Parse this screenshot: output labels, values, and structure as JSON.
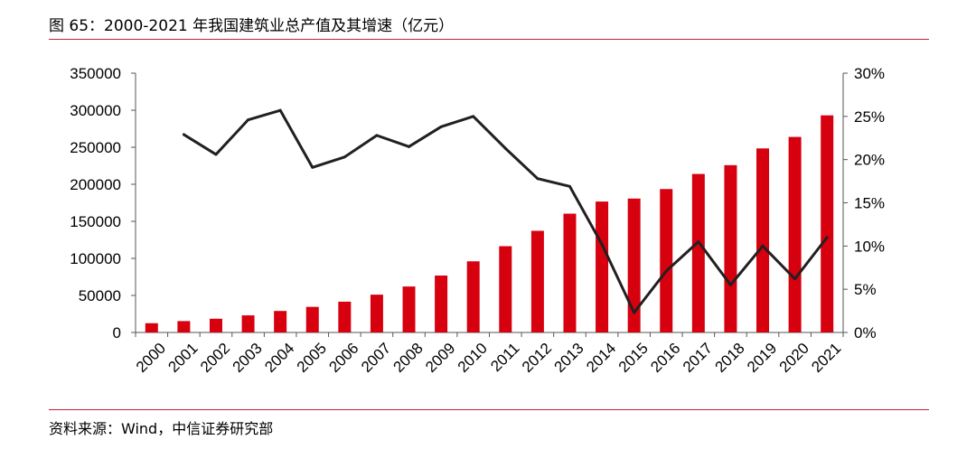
{
  "header": {
    "title": "图 65：2000-2021 年我国建筑业总产值及其增速（亿元）"
  },
  "footer": {
    "source": "资料来源：Wind，中信证券研究部"
  },
  "colors": {
    "bar": "#d7000f",
    "line": "#231f20",
    "rule": "#c0262d"
  },
  "chart_data": {
    "type": "bar",
    "categories": [
      "2000",
      "2001",
      "2002",
      "2003",
      "2004",
      "2005",
      "2006",
      "2007",
      "2008",
      "2009",
      "2010",
      "2011",
      "2012",
      "2013",
      "2014",
      "2015",
      "2016",
      "2017",
      "2018",
      "2019",
      "2020",
      "2021"
    ],
    "series": [
      {
        "type": "bar",
        "axis": "left",
        "values": [
          12498,
          15362,
          18527,
          23084,
          29021,
          34552,
          41557,
          51044,
          62037,
          76808,
          96031,
          116463,
          137218,
          160366,
          176713,
          180757,
          193567,
          213954,
          225817,
          248446,
          263947,
          293079
        ]
      },
      {
        "type": "line",
        "axis": "right",
        "values": [
          null,
          22.9,
          20.6,
          24.6,
          25.7,
          19.1,
          20.3,
          22.8,
          21.5,
          23.8,
          25.0,
          21.3,
          17.8,
          16.9,
          10.2,
          2.3,
          7.1,
          10.5,
          5.5,
          10.0,
          6.2,
          11.0
        ]
      }
    ],
    "y_left": {
      "ylim": [
        0,
        350000
      ],
      "ticks": [
        "0",
        "50000",
        "100000",
        "150000",
        "200000",
        "250000",
        "300000",
        "350000"
      ]
    },
    "y_right": {
      "ylim": [
        0,
        30
      ],
      "ticks": [
        "0%",
        "5%",
        "10%",
        "15%",
        "20%",
        "25%",
        "30%"
      ]
    },
    "legend": "none",
    "grid": false
  }
}
